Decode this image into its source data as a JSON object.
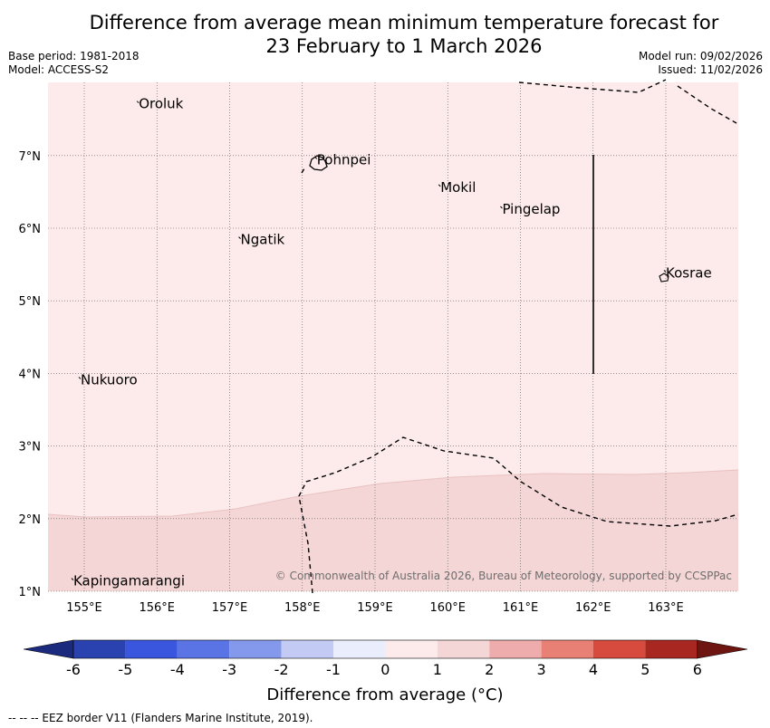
{
  "header": {
    "title_line1": "Difference from average mean minimum temperature forecast for",
    "title_line2": "23 February to 1 March 2026",
    "base_period": "Base period: 1981-2018",
    "model": "Model: ACCESS-S2",
    "model_run": "Model run: 09/02/2026",
    "issued": "Issued: 11/02/2026"
  },
  "map": {
    "lon_range": [
      154.5,
      164.0
    ],
    "lat_range": [
      1.0,
      8.0
    ],
    "lon_ticks": [
      "155°E",
      "156°E",
      "157°E",
      "158°E",
      "159°E",
      "160°E",
      "161°E",
      "162°E",
      "163°E"
    ],
    "lat_ticks": [
      "1°N",
      "2°N",
      "3°N",
      "4°N",
      "5°N",
      "6°N",
      "7°N"
    ],
    "places": [
      {
        "name": "Oroluk",
        "lon": 155.75,
        "lat": 7.65
      },
      {
        "name": "Pohnpei",
        "lon": 158.2,
        "lat": 6.88
      },
      {
        "name": "Mokil",
        "lon": 159.9,
        "lat": 6.5
      },
      {
        "name": "Pingelap",
        "lon": 160.75,
        "lat": 6.2
      },
      {
        "name": "Ngatik",
        "lon": 157.15,
        "lat": 5.78
      },
      {
        "name": "Kosrae",
        "lon": 163.0,
        "lat": 5.32
      },
      {
        "name": "Nukuoro",
        "lon": 154.95,
        "lat": 3.85
      },
      {
        "name": "Kapingamarangi",
        "lon": 154.85,
        "lat": 1.08
      }
    ],
    "copyright": "© Commonwealth of Australia 2026, Bureau of Meteorology, supported by CCSPPac",
    "colors": {
      "zero_to_one": "#fcebea",
      "one_to_two": "#f5d6d6"
    }
  },
  "colorbar": {
    "title": "Difference from average (°C)",
    "tick_labels": [
      "-6",
      "-5",
      "-4",
      "-3",
      "-2",
      "-1",
      "0",
      "1",
      "2",
      "3",
      "4",
      "5",
      "6"
    ],
    "colors": [
      "#1c2a7e",
      "#2a41b0",
      "#3a55de",
      "#5a73e5",
      "#8599ec",
      "#c3cbf4",
      "#eaedfb",
      "#fcebea",
      "#f5d6d6",
      "#eeacac",
      "#e88076",
      "#d74b3e",
      "#a82721",
      "#6e1512"
    ]
  },
  "footer": {
    "eez_note": "--  --  -- EEZ border V11 (Flanders Marine Institute, 2019)."
  }
}
